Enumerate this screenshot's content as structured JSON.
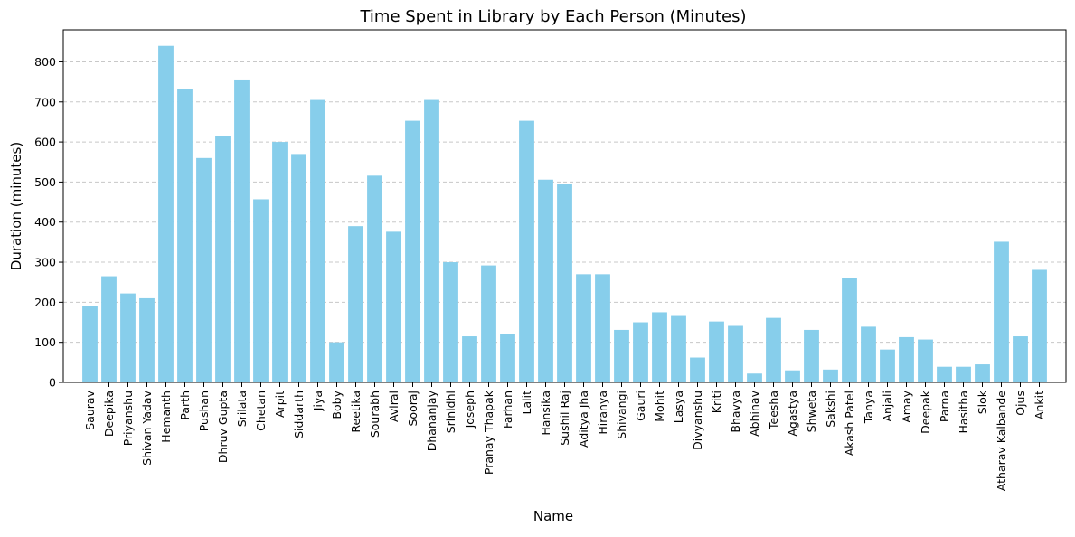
{
  "chart_data": {
    "type": "bar",
    "title": "Time Spent in Library by Each Person (Minutes)",
    "xlabel": "Name",
    "ylabel": "Duration (minutes)",
    "ylim": [
      0,
      880
    ],
    "yticks": [
      0,
      100,
      200,
      300,
      400,
      500,
      600,
      700,
      800
    ],
    "grid": "y-dashed",
    "bar_color": "#87CEEB",
    "categories": [
      "Saurav",
      "Deepika",
      "Priyanshu",
      "Shivan Yadav",
      "Hemanth",
      "Parth",
      "Pushan",
      "Dhruv Gupta",
      "Srilata",
      "Chetan",
      "Arpit",
      "Siddarth",
      "Jiya",
      "Boby",
      "Reetika",
      "Sourabh",
      "Aviral",
      "Sooraj",
      "Dhananjay",
      "Srinidhi",
      "Joseph",
      "Pranay Thapak",
      "Farhan",
      "Lalit",
      "Hansika",
      "Sushil Raj",
      "Aditya Jha",
      "Hiranya",
      "Shivangi",
      "Gauri",
      "Mohit",
      "Lasya",
      "Divyanshu",
      "Kriti",
      "Bhavya",
      "Abhinav",
      "Teesha",
      "Agastya",
      "Shweta",
      "Sakshi",
      "Akash Patel",
      "Tanya",
      "Anjali",
      "Amay",
      "Deepak",
      "Parna",
      "Hasitha",
      "Slok",
      "Atharav Kalbande",
      "Ojus",
      "Ankit"
    ],
    "values": [
      190,
      265,
      222,
      210,
      840,
      732,
      560,
      616,
      756,
      457,
      600,
      570,
      705,
      100,
      390,
      516,
      376,
      653,
      705,
      300,
      115,
      292,
      120,
      653,
      506,
      495,
      270,
      270,
      131,
      150,
      175,
      168,
      62,
      152,
      141,
      22,
      161,
      30,
      131,
      32,
      261,
      139,
      82,
      113,
      107,
      39,
      39,
      45,
      351,
      115,
      281
    ]
  }
}
